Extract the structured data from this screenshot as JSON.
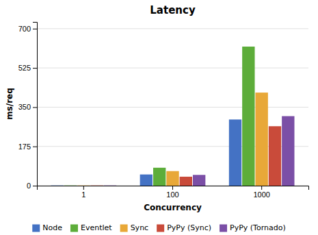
{
  "chart_data": {
    "type": "bar",
    "title": "Latency",
    "xlabel": "Concurrency",
    "ylabel": "ms/req",
    "categories": [
      "1",
      "100",
      "1000"
    ],
    "series": [
      {
        "name": "Node",
        "color": "#4472C4",
        "values": [
          1,
          50,
          295
        ]
      },
      {
        "name": "Eventlet",
        "color": "#5DAD3A",
        "values": [
          1,
          80,
          620
        ]
      },
      {
        "name": "Sync",
        "color": "#E8A838",
        "values": [
          1,
          65,
          415
        ]
      },
      {
        "name": "PyPy (Sync)",
        "color": "#C94B3A",
        "values": [
          1,
          40,
          265
        ]
      },
      {
        "name": "PyPy (Tornado)",
        "color": "#7B4FA6",
        "values": [
          1,
          48,
          310
        ]
      }
    ],
    "ylim": [
      0,
      730
    ],
    "yticks": [
      0,
      175,
      350,
      525,
      700
    ],
    "grid": true,
    "legend": "bottom"
  }
}
